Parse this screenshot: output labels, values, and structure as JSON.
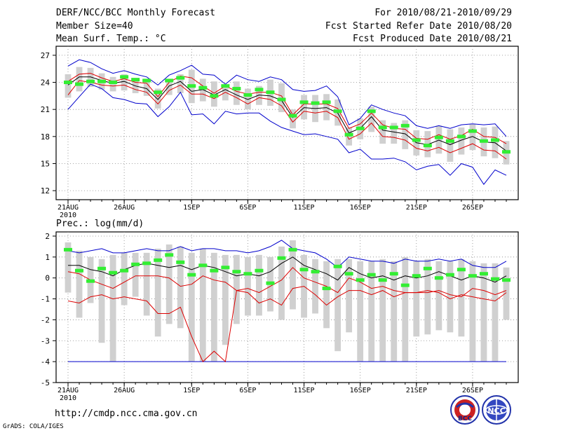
{
  "header": {
    "title": "DERF/NCC/BCC Monthly Forecast",
    "member_size": "Member Size=40",
    "variable": "Mean Surf. Temp.: °C",
    "period": "For 2010/08/21-2010/09/29",
    "started": "Fcst Started Refer Date 2010/08/20",
    "produced": "Fcst Produced Date 2010/08/21"
  },
  "footer": {
    "url": "http://cmdp.ncc.cma.gov.cn",
    "credit": "GrADS: COLA/IGES",
    "logo1_text": "BCC",
    "logo2_text": "NCC"
  },
  "colors": {
    "max": "#0000cc",
    "min": "#0000cc",
    "percentile": "#dd0000",
    "mean": "#000000",
    "box": "#d0d0d0",
    "obs": "#33ee33"
  },
  "chart_data": [
    {
      "type": "line",
      "title": "Mean Surf. Temp.: °C",
      "x": [
        "21AUG",
        "22AUG",
        "23AUG",
        "24AUG",
        "25AUG",
        "26AUG",
        "27AUG",
        "28AUG",
        "29AUG",
        "30AUG",
        "31AUG",
        "1SEP",
        "2SEP",
        "3SEP",
        "4SEP",
        "5SEP",
        "6SEP",
        "7SEP",
        "8SEP",
        "9SEP",
        "10SEP",
        "11SEP",
        "12SEP",
        "13SEP",
        "14SEP",
        "15SEP",
        "16SEP",
        "17SEP",
        "18SEP",
        "19SEP",
        "20SEP",
        "21SEP",
        "22SEP",
        "23SEP",
        "24SEP",
        "25SEP",
        "26SEP",
        "27SEP",
        "28SEP",
        "29SEP"
      ],
      "xticks": [
        "21AUG",
        "26AUG",
        "1SEP",
        "6SEP",
        "11SEP",
        "16SEP",
        "21SEP",
        "26SEP"
      ],
      "xtick_index": [
        0,
        5,
        11,
        16,
        21,
        26,
        31,
        36
      ],
      "year_label": "2010",
      "ylim": [
        11,
        28
      ],
      "yticks": [
        12,
        15,
        18,
        21,
        24,
        27
      ],
      "series": [
        {
          "name": "max",
          "values": [
            25.8,
            26.5,
            26.2,
            25.5,
            25.0,
            25.3,
            24.9,
            24.6,
            23.7,
            24.8,
            25.3,
            25.9,
            24.9,
            24.8,
            23.8,
            24.8,
            24.3,
            24.1,
            24.6,
            24.3,
            23.2,
            23.0,
            23.1,
            23.6,
            22.4,
            19.3,
            20.0,
            21.5,
            21.0,
            20.6,
            20.3,
            19.2,
            18.9,
            19.2,
            18.9,
            19.3,
            19.4,
            19.3,
            19.4,
            18.0
          ]
        },
        {
          "name": "p75",
          "values": [
            24.1,
            24.9,
            25.0,
            24.5,
            24.1,
            24.4,
            24.0,
            23.9,
            22.4,
            24.0,
            24.7,
            24.5,
            23.6,
            22.8,
            23.6,
            23.0,
            22.7,
            22.9,
            22.9,
            22.5,
            20.4,
            21.6,
            21.6,
            21.6,
            21.1,
            18.9,
            19.4,
            20.6,
            19.3,
            18.9,
            18.8,
            17.8,
            17.7,
            18.2,
            17.7,
            18.1,
            18.8,
            18.0,
            17.9,
            17.2
          ]
        },
        {
          "name": "mean",
          "values": [
            23.7,
            24.6,
            24.6,
            24.2,
            23.9,
            24.1,
            23.6,
            23.3,
            22.1,
            23.6,
            24.1,
            23.0,
            23.2,
            22.6,
            23.2,
            22.6,
            22.1,
            22.6,
            22.5,
            22.0,
            20.1,
            21.2,
            21.1,
            21.2,
            20.6,
            18.4,
            18.9,
            20.2,
            18.7,
            18.5,
            18.3,
            17.3,
            17.1,
            17.6,
            17.1,
            17.6,
            18.0,
            17.4,
            17.3,
            16.4
          ]
        },
        {
          "name": "p25",
          "values": [
            22.6,
            24.2,
            24.0,
            23.7,
            23.6,
            23.7,
            23.2,
            22.9,
            21.6,
            23.1,
            23.7,
            22.7,
            22.7,
            22.2,
            22.9,
            22.3,
            21.6,
            22.3,
            22.1,
            21.4,
            19.6,
            20.8,
            20.6,
            20.8,
            20.1,
            17.7,
            18.3,
            19.5,
            18.0,
            17.9,
            17.6,
            16.7,
            16.4,
            16.8,
            16.2,
            16.7,
            17.2,
            16.5,
            16.4,
            15.5
          ]
        },
        {
          "name": "min",
          "values": [
            21.0,
            22.4,
            23.8,
            23.3,
            22.3,
            22.1,
            21.7,
            21.6,
            20.2,
            21.3,
            22.9,
            20.4,
            20.5,
            19.4,
            20.8,
            20.5,
            20.6,
            20.6,
            19.7,
            19.0,
            18.6,
            18.2,
            18.3,
            18.0,
            17.7,
            16.2,
            16.6,
            15.5,
            15.5,
            15.6,
            15.2,
            14.3,
            14.7,
            14.9,
            13.7,
            15.0,
            14.6,
            12.7,
            14.3,
            13.7
          ]
        },
        {
          "name": "obs",
          "values": [
            24.0,
            23.8,
            24.1,
            24.1,
            24.0,
            24.6,
            24.3,
            24.2,
            22.9,
            24.2,
            24.5,
            23.6,
            23.4,
            22.5,
            23.6,
            23.3,
            22.6,
            23.2,
            22.9,
            22.1,
            20.3,
            21.8,
            21.7,
            21.8,
            20.8,
            18.2,
            18.9,
            20.8,
            19.0,
            19.0,
            19.2,
            17.6,
            17.0,
            17.9,
            17.5,
            18.0,
            18.6,
            17.5,
            17.6,
            16.3
          ]
        }
      ],
      "box_p10": [
        22.3,
        23.0,
        23.5,
        23.2,
        23.0,
        23.1,
        22.8,
        22.5,
        21.1,
        22.6,
        22.8,
        21.7,
        21.9,
        21.3,
        22.0,
        21.5,
        21.0,
        21.5,
        21.4,
        20.7,
        18.9,
        19.9,
        19.6,
        19.8,
        19.2,
        17.0,
        17.7,
        18.5,
        17.2,
        17.2,
        16.6,
        15.9,
        15.7,
        16.1,
        15.2,
        16.0,
        16.5,
        15.8,
        15.6,
        14.9
      ],
      "box_p90": [
        24.9,
        25.7,
        25.6,
        25.0,
        24.6,
        24.9,
        24.5,
        24.4,
        23.3,
        24.4,
        24.9,
        25.4,
        24.4,
        24.1,
        23.8,
        24.1,
        23.3,
        23.6,
        24.3,
        23.9,
        21.0,
        22.6,
        22.6,
        22.7,
        22.1,
        19.0,
        20.0,
        21.3,
        19.8,
        19.5,
        19.8,
        18.7,
        18.6,
        19.2,
        18.8,
        19.0,
        19.4,
        19.0,
        19.1,
        17.5
      ]
    },
    {
      "type": "line",
      "title": "Prec.: log(mm/d)",
      "x": [
        "21AUG",
        "22AUG",
        "23AUG",
        "24AUG",
        "25AUG",
        "26AUG",
        "27AUG",
        "28AUG",
        "29AUG",
        "30AUG",
        "31AUG",
        "1SEP",
        "2SEP",
        "3SEP",
        "4SEP",
        "5SEP",
        "6SEP",
        "7SEP",
        "8SEP",
        "9SEP",
        "10SEP",
        "11SEP",
        "12SEP",
        "13SEP",
        "14SEP",
        "15SEP",
        "16SEP",
        "17SEP",
        "18SEP",
        "19SEP",
        "20SEP",
        "21SEP",
        "22SEP",
        "23SEP",
        "24SEP",
        "25SEP",
        "26SEP",
        "27SEP",
        "28SEP",
        "29SEP"
      ],
      "xticks": [
        "21AUG",
        "26AUG",
        "1SEP",
        "6SEP",
        "11SEP",
        "16SEP",
        "21SEP",
        "26SEP"
      ],
      "xtick_index": [
        0,
        5,
        11,
        16,
        21,
        26,
        31,
        36
      ],
      "year_label": "2010",
      "ylim": [
        -5,
        2.2
      ],
      "yticks": [
        -5,
        -4,
        -3,
        -2,
        -1,
        0,
        1,
        2
      ],
      "series": [
        {
          "name": "max",
          "values": [
            1.3,
            1.2,
            1.3,
            1.4,
            1.2,
            1.2,
            1.3,
            1.4,
            1.3,
            1.3,
            1.5,
            1.3,
            1.4,
            1.4,
            1.3,
            1.3,
            1.2,
            1.3,
            1.5,
            1.8,
            1.4,
            1.3,
            1.2,
            0.9,
            0.5,
            1.0,
            0.9,
            0.8,
            0.8,
            0.7,
            0.9,
            0.8,
            0.8,
            0.9,
            0.8,
            0.9,
            0.6,
            0.5,
            0.5,
            0.8
          ]
        },
        {
          "name": "mean",
          "values": [
            0.6,
            0.6,
            0.4,
            0.3,
            0.1,
            0.4,
            0.6,
            0.7,
            0.6,
            0.5,
            0.6,
            0.4,
            0.6,
            0.5,
            0.3,
            0.1,
            0.2,
            0.1,
            0.3,
            0.7,
            1.0,
            0.6,
            0.4,
            0.2,
            -0.1,
            0.5,
            0.2,
            0.0,
            0.1,
            -0.1,
            0.1,
            0.0,
            0.1,
            0.3,
            0.1,
            -0.1,
            0.1,
            0.0,
            -0.2,
            0.1
          ]
        },
        {
          "name": "p25",
          "values": [
            0.3,
            0.2,
            -0.1,
            -0.3,
            -0.5,
            -0.2,
            0.1,
            0.1,
            0.1,
            0.0,
            -0.4,
            -0.3,
            0.1,
            -0.1,
            -0.2,
            -0.6,
            -0.5,
            -0.7,
            -0.4,
            -0.1,
            0.5,
            0.0,
            -0.2,
            -0.4,
            -0.7,
            0.0,
            -0.2,
            -0.5,
            -0.4,
            -0.6,
            -0.7,
            -0.7,
            -0.7,
            -0.6,
            -0.8,
            -0.9,
            -0.5,
            -0.6,
            -0.8,
            -0.6
          ]
        },
        {
          "name": "p10",
          "values": [
            -1.1,
            -1.2,
            -0.9,
            -0.8,
            -1.0,
            -0.9,
            -1.0,
            -1.1,
            -1.7,
            -1.7,
            -1.4,
            -2.8,
            -4.0,
            -3.5,
            -4.0,
            -0.6,
            -0.7,
            -1.2,
            -1.0,
            -1.3,
            -0.5,
            -0.4,
            -0.8,
            -1.3,
            -0.9,
            -0.6,
            -0.6,
            -0.8,
            -0.6,
            -0.9,
            -0.7,
            -0.7,
            -0.6,
            -0.7,
            -1.0,
            -0.8,
            -0.9,
            -1.0,
            -1.1,
            -0.7
          ]
        },
        {
          "name": "min",
          "values": [
            -4,
            -4,
            -4,
            -4,
            -4,
            -4,
            -4,
            -4,
            -4,
            -4,
            -4,
            -4,
            -4,
            -4,
            -4,
            -4,
            -4,
            -4,
            -4,
            -4,
            -4,
            -4,
            -4,
            -4,
            -4,
            -4,
            -4,
            -4,
            -4,
            -4,
            -4,
            -4,
            -4,
            -4,
            -4,
            -4,
            -4,
            -4,
            -4,
            -4
          ]
        },
        {
          "name": "obs",
          "values": [
            1.35,
            0.35,
            -0.15,
            0.45,
            0.25,
            0.35,
            0.65,
            0.7,
            0.85,
            1.1,
            0.75,
            0.15,
            0.6,
            0.35,
            0.5,
            0.3,
            0.2,
            0.35,
            -0.25,
            0.95,
            1.35,
            0.4,
            0.3,
            -0.5,
            0.55,
            0.2,
            -0.1,
            0.15,
            -0.1,
            0.2,
            -0.35,
            0.1,
            0.45,
            0.0,
            0.15,
            0.4,
            0.1,
            0.2,
            -0.05,
            -0.1
          ]
        }
      ],
      "box_low": [
        -0.7,
        -1.9,
        -1.2,
        -3.1,
        -4.0,
        -1.3,
        -0.9,
        -1.8,
        -2.8,
        -2.2,
        -2.4,
        -4.0,
        -4.0,
        -4.0,
        -3.2,
        -2.2,
        -1.8,
        -1.8,
        -1.6,
        -2.0,
        -1.5,
        -1.9,
        -1.7,
        -2.4,
        -3.5,
        -2.6,
        -4.0,
        -4.0,
        -4.0,
        -4.0,
        -4.0,
        -2.8,
        -2.7,
        -2.5,
        -2.6,
        -2.8,
        -4.0,
        -4.0,
        -4.0,
        -2.0
      ],
      "box_high": [
        1.7,
        1.3,
        1.0,
        0.9,
        1.1,
        1.2,
        1.2,
        1.2,
        1.4,
        1.6,
        1.5,
        1.2,
        1.4,
        1.2,
        1.1,
        1.1,
        1.0,
        1.1,
        1.0,
        1.5,
        1.8,
        1.1,
        0.9,
        0.8,
        0.9,
        0.9,
        0.8,
        0.8,
        0.9,
        0.8,
        1.0,
        0.8,
        0.9,
        0.8,
        0.8,
        0.9,
        0.8,
        0.7,
        0.7,
        0.5
      ]
    }
  ]
}
